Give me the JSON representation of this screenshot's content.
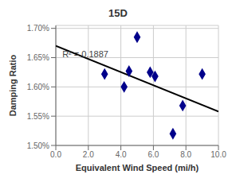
{
  "chart_data": {
    "type": "scatter",
    "title": "15D",
    "xlabel": "Equivalent Wind Speed (mi/h)",
    "ylabel": "Damping Ratio",
    "xlim": [
      0.0,
      10.0
    ],
    "ylim": [
      0.015,
      0.01705
    ],
    "xticks": [
      {
        "value": 0.0,
        "label": "0.0"
      },
      {
        "value": 2.0,
        "label": "2.0"
      },
      {
        "value": 4.0,
        "label": "4.0"
      },
      {
        "value": 6.0,
        "label": "6.0"
      },
      {
        "value": 8.0,
        "label": "8.0"
      },
      {
        "value": 10.0,
        "label": "10.0"
      }
    ],
    "yticks": [
      {
        "value": 0.015,
        "label": "1.50%"
      },
      {
        "value": 0.0155,
        "label": "1.55%"
      },
      {
        "value": 0.016,
        "label": "1.60%"
      },
      {
        "value": 0.0165,
        "label": "1.65%"
      },
      {
        "value": 0.017,
        "label": "1.70%"
      }
    ],
    "grid": true,
    "series": [
      {
        "type": "line",
        "color": "#000000",
        "x": [
          0.0,
          10.0
        ],
        "values": [
          0.0167,
          0.01558
        ]
      },
      {
        "type": "scatter",
        "color": "#00008B",
        "marker": "diamond",
        "x": [
          3.0,
          4.2,
          4.5,
          5.0,
          5.8,
          6.1,
          7.2,
          7.8,
          9.0
        ],
        "values": [
          0.01622,
          0.016,
          0.01627,
          0.01685,
          0.01625,
          0.01618,
          0.0152,
          0.01568,
          0.01622
        ]
      }
    ],
    "annotations": [
      {
        "text": "R² = 0.1887",
        "x": 0.4,
        "y": 0.01655
      }
    ]
  }
}
